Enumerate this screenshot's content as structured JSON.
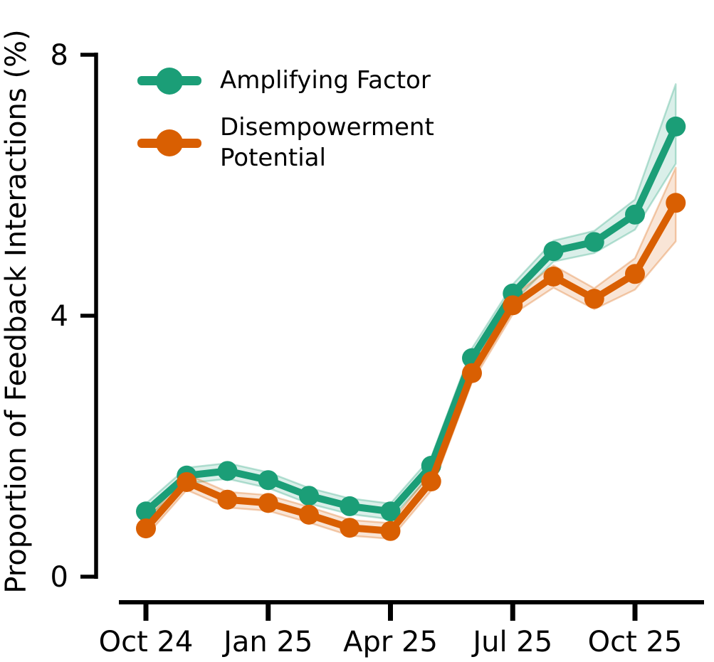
{
  "figure": {
    "background": "#ffffff",
    "axis_color": "#000000",
    "text_color": "#000000"
  },
  "chart_data": {
    "type": "line",
    "title": "",
    "xlabel": "",
    "ylabel": "Proportion of Feedback Interactions (%)",
    "ylim": [
      0,
      8
    ],
    "y_ticks": [
      0,
      4,
      8
    ],
    "grid": false,
    "legend_position": "upper left",
    "x": [
      "Oct 24",
      "Nov 24",
      "Dec 24",
      "Jan 25",
      "Feb 25",
      "Mar 25",
      "Apr 25",
      "May 25",
      "Jun 25",
      "Jul 25",
      "Aug 25",
      "Sep 25",
      "Oct 25",
      "Nov 25"
    ],
    "x_tick_indices": [
      0,
      3,
      6,
      9,
      12
    ],
    "x_tick_labels": [
      "Oct 24",
      "Jan 25",
      "Apr 25",
      "Jul 25",
      "Oct 25"
    ],
    "series": [
      {
        "name": "Amplifying Factor",
        "color": "#1b9e77",
        "values": [
          1.0,
          1.55,
          1.62,
          1.48,
          1.24,
          1.08,
          1.0,
          1.7,
          3.35,
          4.34,
          4.99,
          5.13,
          5.55,
          6.9
        ],
        "upper": [
          1.12,
          1.67,
          1.74,
          1.6,
          1.36,
          1.2,
          1.12,
          1.83,
          3.5,
          4.48,
          5.15,
          5.3,
          5.78,
          7.55
        ],
        "lower": [
          0.88,
          1.43,
          1.5,
          1.36,
          1.12,
          0.96,
          0.88,
          1.57,
          3.2,
          4.2,
          4.83,
          4.96,
          5.32,
          6.33
        ]
      },
      {
        "name": "Disempowerment\nPotential",
        "color": "#d95f02",
        "values": [
          0.74,
          1.45,
          1.18,
          1.13,
          0.95,
          0.75,
          0.7,
          1.46,
          3.12,
          4.16,
          4.6,
          4.26,
          4.64,
          5.73
        ],
        "upper": [
          0.86,
          1.57,
          1.3,
          1.25,
          1.07,
          0.87,
          0.82,
          1.6,
          3.26,
          4.3,
          4.77,
          4.42,
          4.88,
          6.27
        ],
        "lower": [
          0.62,
          1.33,
          1.06,
          1.01,
          0.83,
          0.63,
          0.58,
          1.32,
          2.98,
          4.02,
          4.43,
          4.1,
          4.4,
          5.14
        ]
      }
    ]
  }
}
